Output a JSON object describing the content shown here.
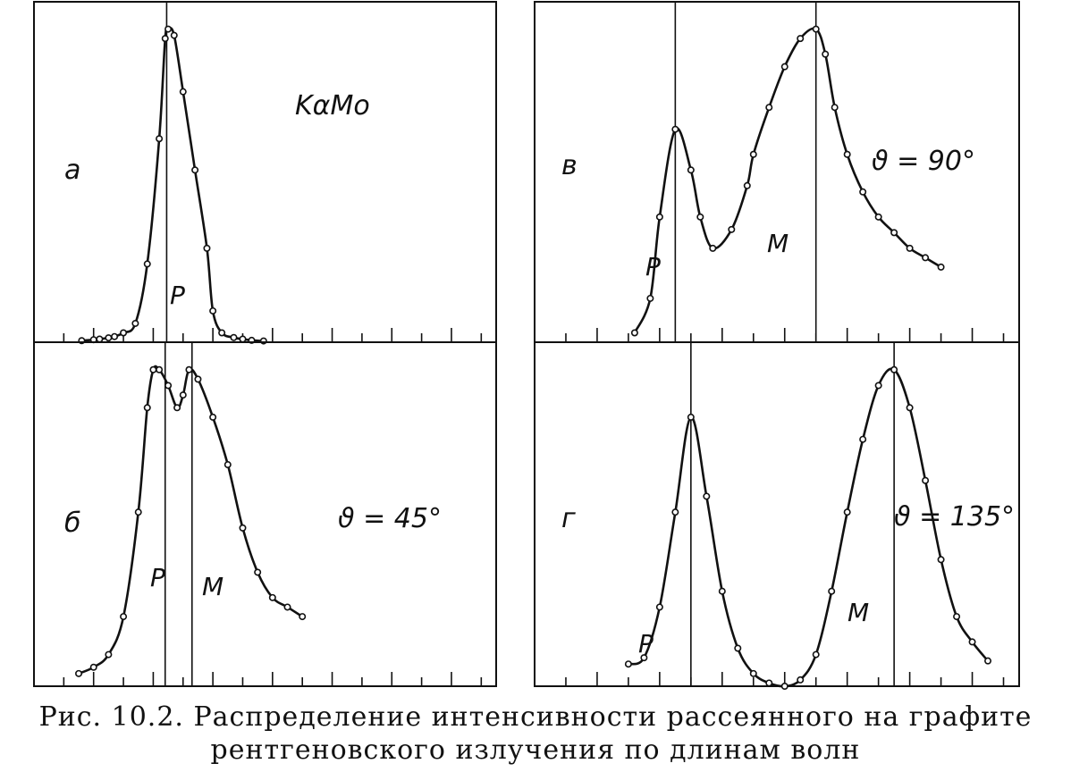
{
  "ink_color": "#111111",
  "paper_color": "#ffffff",
  "caption": {
    "line1": "Рис. 10.2. Распределение интенсивности рассеянного на графите",
    "line2": "рентгеновского излучения по длинам волн"
  },
  "chart_data": [
    {
      "type": "line",
      "panel": "а",
      "annotations": [
        "KαMo",
        "P"
      ],
      "markers": [
        "P"
      ],
      "x": [
        1.6,
        2.0,
        2.2,
        2.5,
        2.7,
        3.0,
        3.4,
        3.8,
        4.2,
        4.4,
        4.5,
        4.7,
        5.0,
        5.4,
        5.8,
        6.0,
        6.3,
        6.7,
        7.0,
        7.3,
        7.7
      ],
      "values": [
        0.5,
        0.8,
        1.0,
        1.4,
        1.8,
        3.0,
        6.0,
        25,
        65,
        97,
        100,
        98,
        80,
        55,
        30,
        10,
        3,
        1.5,
        1.0,
        0.6,
        0.4
      ],
      "xlim": [
        0,
        15.5
      ],
      "ylim": [
        0,
        100
      ]
    },
    {
      "type": "line",
      "panel": "б",
      "annotations": [
        "ϑ = 45°",
        "P",
        "M"
      ],
      "markers": [
        "P",
        "M"
      ],
      "x": [
        1.5,
        2.0,
        2.5,
        3.0,
        3.5,
        3.8,
        4.0,
        4.2,
        4.5,
        4.8,
        5.0,
        5.2,
        5.5,
        6.0,
        6.5,
        7.0,
        7.5,
        8.0,
        8.5,
        9.0
      ],
      "values": [
        4,
        6,
        10,
        22,
        55,
        88,
        100,
        100,
        95,
        88,
        92,
        100,
        97,
        85,
        70,
        50,
        36,
        28,
        25,
        22
      ],
      "xlim": [
        0,
        15.5
      ],
      "ylim": [
        0,
        100
      ]
    },
    {
      "type": "line",
      "panel": "в",
      "annotations": [
        "ϑ = 90°",
        "P",
        "M"
      ],
      "markers": [
        "P",
        "M"
      ],
      "x": [
        3.2,
        3.7,
        4.0,
        4.5,
        5.0,
        5.3,
        5.7,
        6.3,
        6.8,
        7.0,
        7.5,
        8.0,
        8.5,
        9.0,
        9.3,
        9.6,
        10.0,
        10.5,
        11.0,
        11.5,
        12.0,
        12.5,
        13.0
      ],
      "values": [
        3,
        14,
        40,
        68,
        55,
        40,
        30,
        36,
        50,
        60,
        75,
        88,
        97,
        100,
        92,
        75,
        60,
        48,
        40,
        35,
        30,
        27,
        24
      ],
      "xlim": [
        0,
        15.5
      ],
      "ylim": [
        0,
        100
      ]
    },
    {
      "type": "line",
      "panel": "г",
      "annotations": [
        "ϑ = 135°",
        "P",
        "M"
      ],
      "markers": [
        "P",
        "M"
      ],
      "x": [
        3.0,
        3.5,
        4.0,
        4.5,
        5.0,
        5.5,
        6.0,
        6.5,
        7.0,
        7.5,
        8.0,
        8.5,
        9.0,
        9.5,
        10.0,
        10.5,
        11.0,
        11.5,
        12.0,
        12.5,
        13.0,
        13.5,
        14.0,
        14.5
      ],
      "values": [
        7,
        9,
        25,
        55,
        85,
        60,
        30,
        12,
        4,
        1,
        0,
        2,
        10,
        30,
        55,
        78,
        95,
        100,
        88,
        65,
        40,
        22,
        14,
        8
      ],
      "xlim": [
        0,
        15.5
      ],
      "ylim": [
        0,
        100
      ]
    }
  ]
}
